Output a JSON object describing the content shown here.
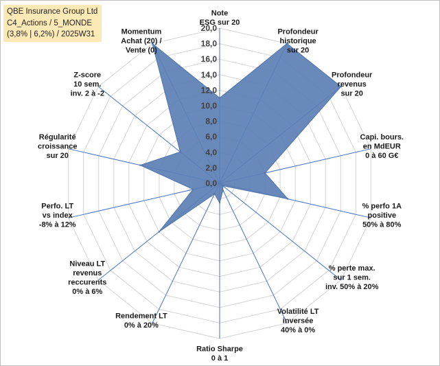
{
  "title_box": {
    "line1": "QBE Insurance Group Ltd",
    "line2": "C4_Actions / 5_MONDE",
    "line3": "(3,8% | 6,2%) / 2025W31"
  },
  "colors": {
    "series_fill": "#5b7fb4",
    "series_stroke": "#4f73a8",
    "spoke": "#4472c4",
    "grid": "#d4d4d4",
    "title_bg": "#fde9b6"
  },
  "chart_data": {
    "type": "radar",
    "title": "",
    "rlim": [
      0,
      20
    ],
    "ticks": [
      "0,0",
      "2,0",
      "4,0",
      "6,0",
      "8,0",
      "10,0",
      "12,0",
      "14,0",
      "16,0",
      "18,0",
      "20,0"
    ],
    "grid": true,
    "categories": [
      [
        "Note",
        "ESG sur 20"
      ],
      [
        "Profondeur",
        "historique",
        "sur 20"
      ],
      [
        "Profondeur",
        "revenus",
        "sur 20"
      ],
      [
        "Capi. bours.",
        "en MdEUR",
        "0 à 60 G€"
      ],
      [
        "% perfo 1A",
        "positive",
        "50% à 80%"
      ],
      [
        "% perte max.",
        "sur 1 sem.",
        "inv. 50% à 20%"
      ],
      [
        "Volatilité LT",
        "inversée",
        "40% à 0%"
      ],
      [
        "Ratio Sharpe",
        "0 à 1"
      ],
      [
        "Rendement LT",
        "0% à 20%"
      ],
      [
        "Niveau LT",
        "revenus",
        "reccurents",
        "0% à 6%"
      ],
      [
        "Perfo. LT",
        "vs index",
        "-8% à 12%"
      ],
      [
        "Régularité",
        "croissance",
        "sur 20"
      ],
      [
        "Z-score",
        "10 sem.",
        "inv. 2 à -2"
      ],
      [
        "Momentum",
        "Achat (20) /",
        "Vente (0)"
      ]
    ],
    "series": [
      {
        "values": [
          11,
          20,
          20,
          6,
          9,
          0.5,
          1,
          2.5,
          1.5,
          10,
          3.5,
          10.5,
          6.5,
          20
        ]
      }
    ]
  }
}
